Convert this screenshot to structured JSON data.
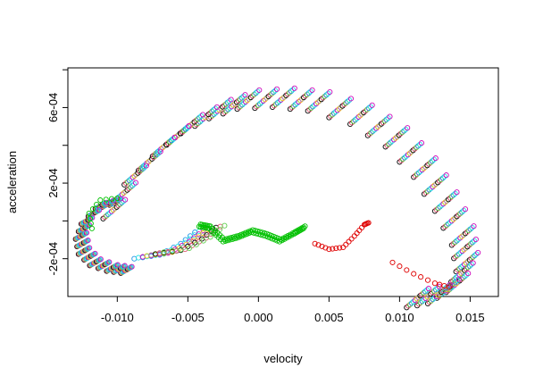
{
  "chart_data": {
    "type": "scatter",
    "title": "",
    "xlabel": "velocity",
    "ylabel": "acceleration",
    "xlim": [
      -0.0135,
      0.017
    ],
    "ylim": [
      -0.0004,
      0.00081
    ],
    "x_ticks": [
      -0.01,
      -0.005,
      0.0,
      0.005,
      0.01,
      0.015
    ],
    "x_tick_labels": [
      "-0.010",
      "-0.005",
      "0.000",
      "0.005",
      "0.010",
      "0.015"
    ],
    "y_ticks": [
      -0.0002,
      0.0002,
      0.0006
    ],
    "y_tick_labels": [
      "-2e-04",
      "2e-04",
      "6e-04"
    ],
    "grid": false,
    "legend": "none",
    "marker": "open-circle",
    "series_colors": [
      "#000000",
      "#df536b",
      "#61d04f",
      "#2297e6",
      "#28e2e5",
      "#cd0bbc",
      "#f5c710",
      "#9e9e9e"
    ],
    "description_series": {
      "outer_loop": {
        "note_free": true,
        "x": [
          -0.0095,
          -0.008,
          -0.006,
          -0.004,
          -0.002,
          0.0,
          0.0025,
          0.005,
          0.008,
          0.0105,
          0.0125,
          0.014,
          0.0152,
          0.0155,
          0.0148,
          0.0135,
          0.012
        ],
        "y": [
          0.00012,
          0.0003,
          0.00045,
          0.00057,
          0.00065,
          0.0007,
          0.00071,
          0.00069,
          0.00062,
          0.0005,
          0.00034,
          0.00016,
          -2e-05,
          -0.00016,
          -0.00027,
          -0.00033,
          -0.00035
        ]
      },
      "left_loop": {
        "x": [
          -0.0098,
          -0.0108,
          -0.0118,
          -0.0122,
          -0.012,
          -0.0112,
          -0.01,
          -0.009
        ],
        "y": [
          0.00012,
          0.0001,
          2e-05,
          -6e-05,
          -0.00014,
          -0.0002,
          -0.00023,
          -0.00024
        ]
      },
      "green_wave": {
        "x": [
          -0.0042,
          -0.0035,
          -0.0025,
          -0.0015,
          -0.0005,
          0.0005,
          0.0015,
          0.0025,
          0.0032
        ],
        "y": [
          -3e-05,
          -4e-05,
          -0.00011,
          -9e-05,
          -6e-05,
          -8e-05,
          -0.00011,
          -7e-05,
          -4e-05
        ]
      },
      "red_tail": {
        "x": [
          0.004,
          0.005,
          0.006,
          0.0068,
          0.0075,
          0.0078
        ],
        "y": [
          -0.00012,
          -0.00015,
          -0.00014,
          -8e-05,
          -2e-05,
          -1e-05
        ]
      }
    }
  }
}
